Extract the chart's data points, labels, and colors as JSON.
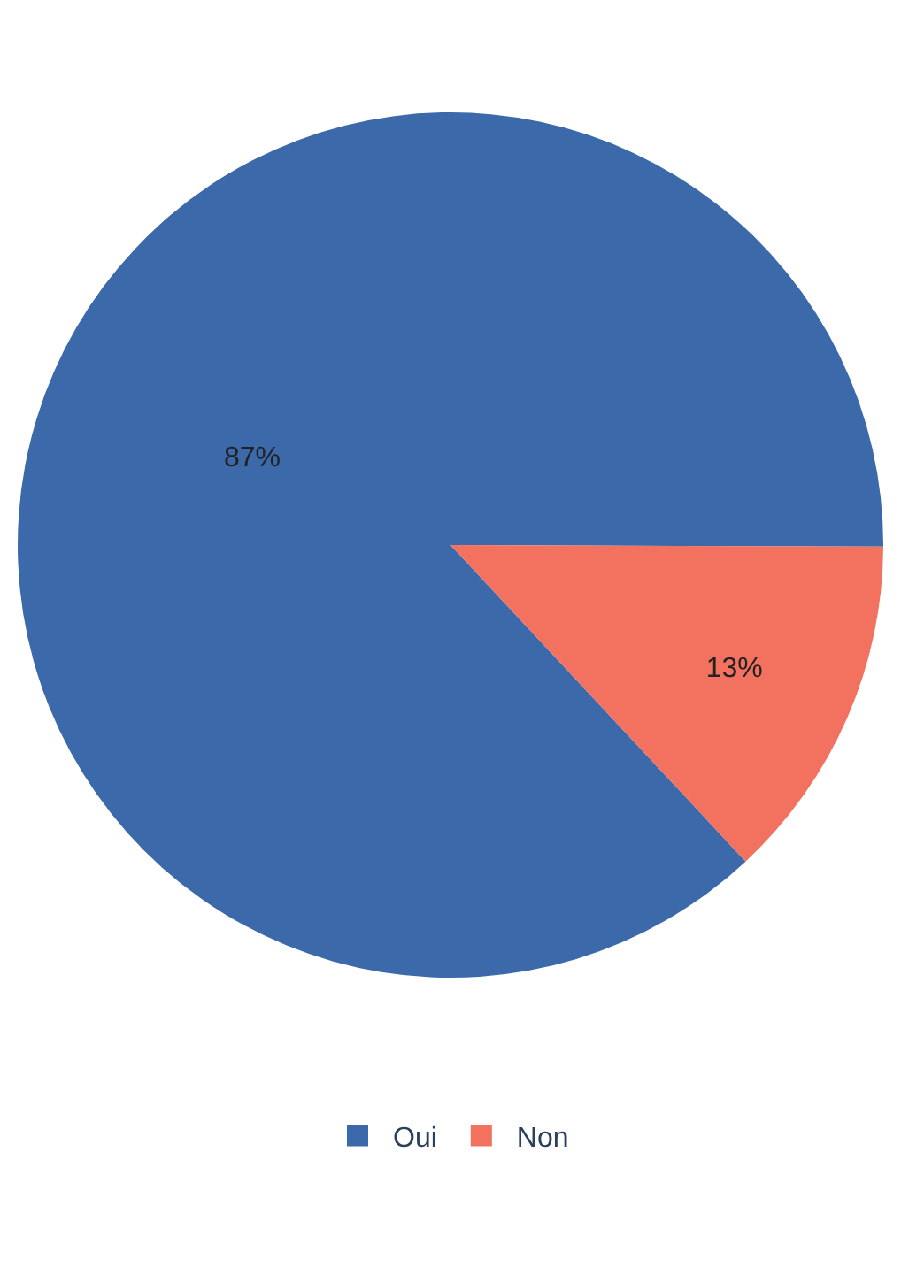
{
  "chart_data": {
    "type": "pie",
    "categories": [
      "Oui",
      "Non"
    ],
    "values": [
      87,
      13
    ],
    "colors": [
      "#3b69aa",
      "#f3715f"
    ],
    "value_labels": [
      "87%",
      "13%"
    ],
    "legend": "bottom"
  }
}
